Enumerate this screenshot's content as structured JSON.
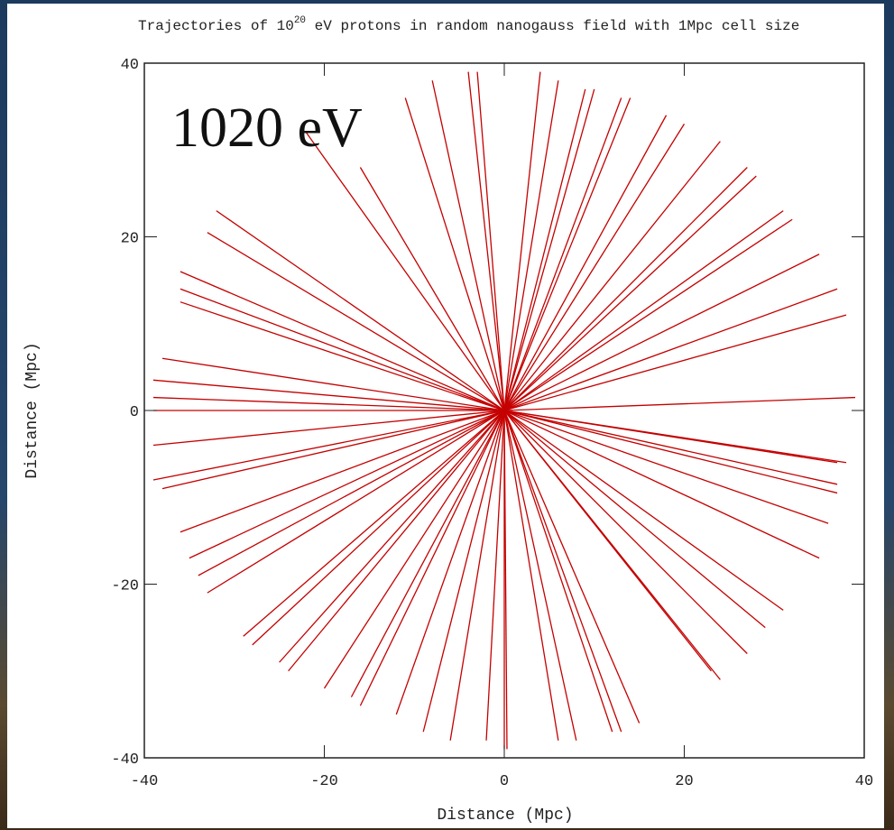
{
  "chart_data": {
    "type": "trajectory",
    "title_parts": [
      "Trajectories of 10",
      "20",
      " eV protons in random nanogauss field with 1Mpc cell size"
    ],
    "annotation": "1020 eV",
    "xlabel": "Distance (Mpc)",
    "ylabel": "Distance (Mpc)",
    "color": "#c40000",
    "xlim": [
      -40,
      40
    ],
    "ylim": [
      -40,
      40
    ],
    "xticks": [
      -40,
      -20,
      0,
      20,
      40
    ],
    "yticks": [
      -40,
      -20,
      0,
      20,
      40
    ],
    "x": [
      -22,
      -8,
      -4,
      -3,
      4,
      6,
      9,
      10,
      13,
      14,
      18,
      20,
      24,
      27,
      28,
      31,
      32,
      35,
      37,
      38,
      39,
      38,
      37,
      37,
      37,
      36,
      35,
      31,
      29,
      27,
      24,
      23,
      15,
      13,
      12,
      8,
      6,
      0,
      0.3,
      -2,
      -6,
      -9,
      -12,
      -16,
      -17,
      -20,
      -24,
      -25,
      -28,
      -29,
      -33,
      -34,
      -35,
      -36,
      -38,
      -39,
      -39,
      -39,
      -39,
      -39,
      -38,
      -36,
      -36,
      -36,
      -33,
      -32,
      -16,
      -11
    ],
    "y": [
      32,
      38,
      39,
      39,
      39,
      38,
      37,
      37,
      36,
      36,
      34,
      33,
      31,
      28,
      27,
      23,
      22,
      18,
      14,
      11,
      1.5,
      -6,
      -6,
      -8.5,
      -9.5,
      -13,
      -17,
      -23,
      -25,
      -28,
      -31,
      -30,
      -36,
      -37,
      -37,
      -38,
      -38,
      -39,
      -39,
      -38,
      -38,
      -37,
      -35,
      -34,
      -33,
      -32,
      -30,
      -29,
      -27,
      -26,
      -21,
      -19,
      -17,
      -14,
      -9,
      -8,
      -4,
      0,
      1.5,
      3.5,
      6,
      12.5,
      14,
      16,
      20.5,
      23,
      28,
      36
    ]
  }
}
